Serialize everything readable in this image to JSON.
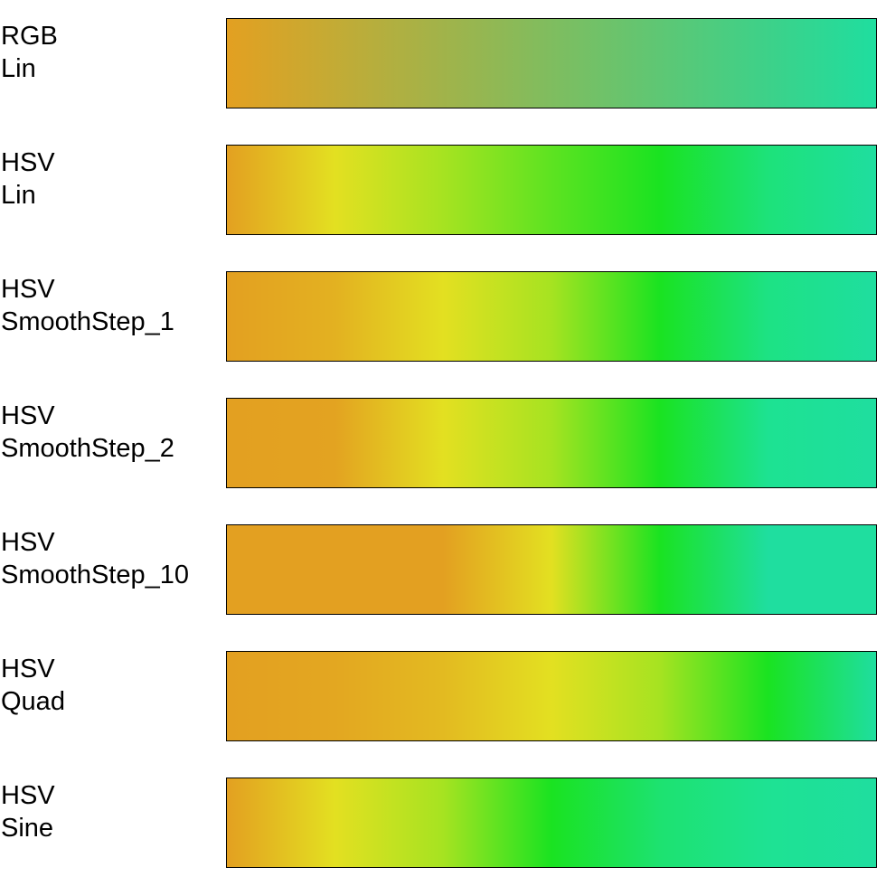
{
  "gradients": [
    {
      "space": "RGB",
      "easing": "Lin",
      "stops": [
        "#e3a021",
        "#c3ab35",
        "#a1b34a",
        "#7fbd5f",
        "#5ec774",
        "#3dd189",
        "#1fde9f"
      ]
    },
    {
      "space": "HSV",
      "easing": "Lin",
      "stops": [
        "#e3a021",
        "#e3e021",
        "#a6e321",
        "#5de321",
        "#1ae321",
        "#1de27a",
        "#1fde9f"
      ]
    },
    {
      "space": "HSV",
      "easing": "SmoothStep_1",
      "stops": [
        "#e3a021",
        "#e3b121",
        "#e3e021",
        "#a6e321",
        "#1ae321",
        "#1de284",
        "#1fde9f"
      ]
    },
    {
      "space": "HSV",
      "easing": "SmoothStep_2",
      "stops": [
        "#e3a021",
        "#e3a321",
        "#e3e021",
        "#a6e321",
        "#1ae321",
        "#1de292",
        "#1fde9f"
      ]
    },
    {
      "space": "HSV",
      "easing": "SmoothStep_10",
      "stops": [
        "#e3a021",
        "#e3a021",
        "#e3a021",
        "#e3e021",
        "#1ae321",
        "#1fde9f",
        "#1fde9f"
      ]
    },
    {
      "space": "HSV",
      "easing": "Quad",
      "stops": [
        "#e3a021",
        "#e3a721",
        "#e3ba21",
        "#e3e021",
        "#a6e321",
        "#1ae321",
        "#1fde9f"
      ]
    },
    {
      "space": "HSV",
      "easing": "Sine",
      "stops": [
        "#e3a021",
        "#e3e021",
        "#a6e321",
        "#1ae321",
        "#1de270",
        "#1ee293",
        "#1fde9f"
      ]
    }
  ]
}
